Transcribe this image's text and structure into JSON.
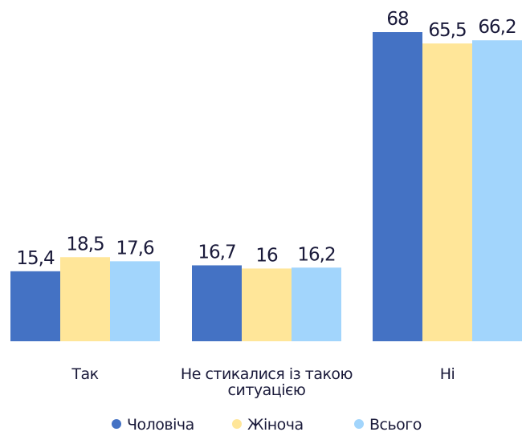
{
  "chart_data": {
    "type": "bar",
    "categories": [
      "Так",
      "Не стикалися із такою ситуацією",
      "Ні"
    ],
    "series": [
      {
        "name": "Чоловіча",
        "color": "#4472c4",
        "values": [
          15.4,
          16.7,
          68
        ],
        "value_labels": [
          "15,4",
          "16,7",
          "68"
        ]
      },
      {
        "name": "Жіноча",
        "color": "#ffe699",
        "values": [
          18.5,
          16,
          65.5
        ],
        "value_labels": [
          "18,5",
          "16",
          "65,5"
        ]
      },
      {
        "name": "Всього",
        "color": "#a2d5fc",
        "values": [
          17.6,
          16.2,
          66.2
        ],
        "value_labels": [
          "17,6",
          "16,2",
          "66,2"
        ]
      }
    ],
    "legend": "bottom"
  }
}
